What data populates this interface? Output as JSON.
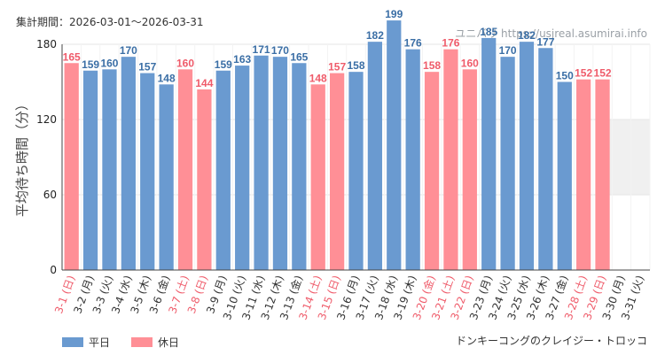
{
  "header": {
    "period": "集計期間：2026-03-01～2026-03-31",
    "watermark": "ユニバリ  https://usjreal.asumirai.info"
  },
  "footer": {
    "attraction": "ドンキーコングのクレイジー・トロッコ"
  },
  "colors": {
    "weekday": "#6a9ad0",
    "holiday": "#ff8f96",
    "weekday_text": "#3a6ea5",
    "holiday_text": "#ef5b6a",
    "band": "#f0f0f0",
    "grid": "#e6e6e6",
    "axis": "#444444"
  },
  "chart_data": {
    "type": "bar",
    "title": "",
    "ylabel": "平均待ち時間（分）",
    "ylim": [
      0,
      180
    ],
    "yticks": [
      0,
      60,
      120,
      180
    ],
    "shaded_band": [
      60,
      120
    ],
    "legend": {
      "position": "bottom-left",
      "entries": [
        {
          "name": "平日",
          "key": "weekday"
        },
        {
          "name": "休日",
          "key": "holiday"
        }
      ]
    },
    "categories": [
      "3-1 (日)",
      "3-2 (月)",
      "3-3 (火)",
      "3-4 (水)",
      "3-5 (木)",
      "3-6 (金)",
      "3-7 (土)",
      "3-8 (日)",
      "3-9 (月)",
      "3-10 (火)",
      "3-11 (水)",
      "3-12 (木)",
      "3-13 (金)",
      "3-14 (土)",
      "3-15 (日)",
      "3-16 (月)",
      "3-17 (火)",
      "3-18 (水)",
      "3-19 (木)",
      "3-20 (金)",
      "3-21 (土)",
      "3-22 (日)",
      "3-23 (月)",
      "3-24 (火)",
      "3-25 (水)",
      "3-26 (木)",
      "3-27 (金)",
      "3-28 (土)",
      "3-29 (日)",
      "3-30 (月)",
      "3-31 (火)"
    ],
    "values": [
      165,
      159,
      160,
      170,
      157,
      148,
      160,
      144,
      159,
      163,
      171,
      170,
      165,
      148,
      157,
      158,
      182,
      199,
      176,
      158,
      176,
      160,
      185,
      170,
      182,
      177,
      150,
      152,
      152,
      null,
      null
    ],
    "day_type": [
      "holiday",
      "weekday",
      "weekday",
      "weekday",
      "weekday",
      "weekday",
      "holiday",
      "holiday",
      "weekday",
      "weekday",
      "weekday",
      "weekday",
      "weekday",
      "holiday",
      "holiday",
      "weekday",
      "weekday",
      "weekday",
      "weekday",
      "holiday",
      "holiday",
      "holiday",
      "weekday",
      "weekday",
      "weekday",
      "weekday",
      "weekday",
      "holiday",
      "holiday",
      "weekday",
      "weekday"
    ]
  }
}
